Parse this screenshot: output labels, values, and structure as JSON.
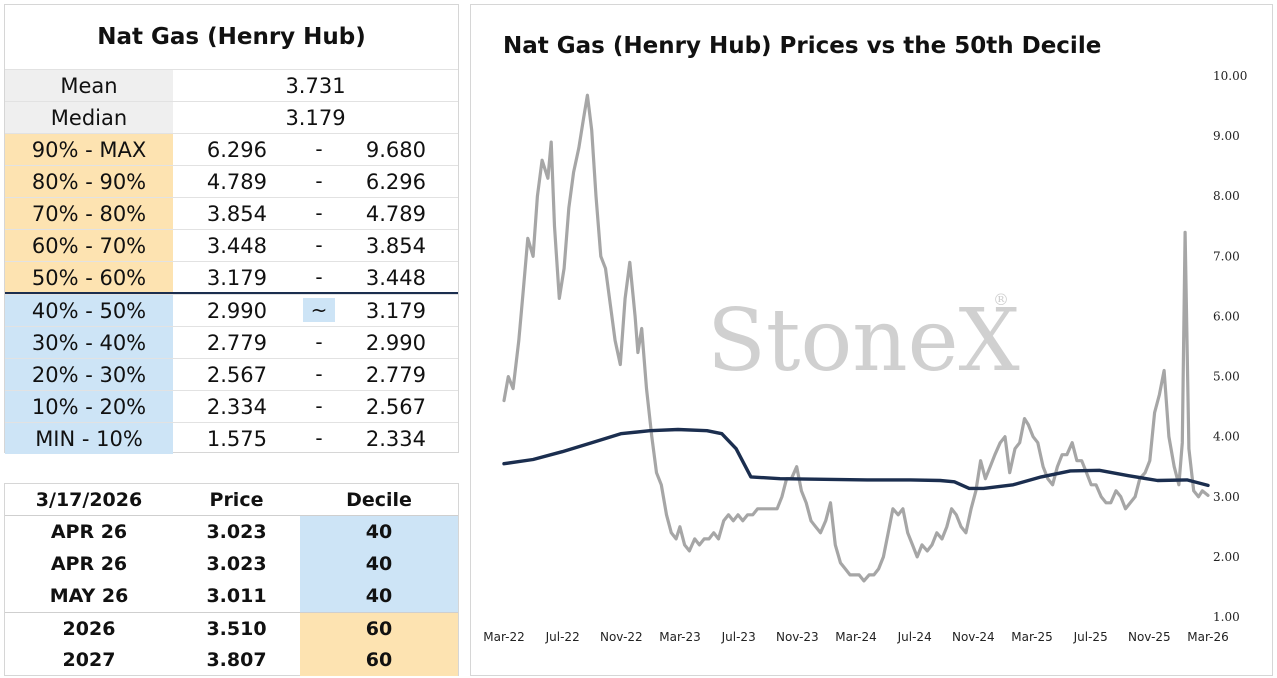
{
  "decile_table": {
    "title": "Nat Gas (Henry Hub)",
    "mean_label": "Mean",
    "mean_value": "3.731",
    "median_label": "Median",
    "median_value": "3.179",
    "rows": [
      {
        "label": "90% - MAX",
        "low": "6.296",
        "sep": "-",
        "high": "9.680"
      },
      {
        "label": "80% - 90%",
        "low": "4.789",
        "sep": "-",
        "high": "6.296"
      },
      {
        "label": "70% - 80%",
        "low": "3.854",
        "sep": "-",
        "high": "4.789"
      },
      {
        "label": "60% - 70%",
        "low": "3.448",
        "sep": "-",
        "high": "3.854"
      },
      {
        "label": "50% - 60%",
        "low": "3.179",
        "sep": "-",
        "high": "3.448"
      },
      {
        "label": "40% - 50%",
        "low": "2.990",
        "sep": "~",
        "high": "3.179"
      },
      {
        "label": "30% - 40%",
        "low": "2.779",
        "sep": "-",
        "high": "2.990"
      },
      {
        "label": "20% - 30%",
        "low": "2.567",
        "sep": "-",
        "high": "2.779"
      },
      {
        "label": "10% - 20%",
        "low": "2.334",
        "sep": "-",
        "high": "2.567"
      },
      {
        "label": "MIN - 10%",
        "low": "1.575",
        "sep": "-",
        "high": "2.334"
      }
    ]
  },
  "quote_table": {
    "date": "3/17/2026",
    "price_header": "Price",
    "decile_header": "Decile",
    "rows": [
      {
        "contract": "APR 26",
        "price": "3.023",
        "decile": "40"
      },
      {
        "contract": "APR 26",
        "price": "3.023",
        "decile": "40"
      },
      {
        "contract": "MAY 26",
        "price": "3.011",
        "decile": "40"
      },
      {
        "contract": "2026",
        "price": "3.510",
        "decile": "60"
      },
      {
        "contract": "2027",
        "price": "3.807",
        "decile": "60"
      }
    ]
  },
  "watermark": "StoneX",
  "colors": {
    "price_line": "#a6a6a6",
    "decile_line": "#1b2e4f",
    "high_fill": "#fde3b1",
    "low_fill": "#cde4f6"
  },
  "chart_data": {
    "type": "line",
    "title": "Nat Gas (Henry Hub) Prices vs the 50th Decile",
    "xlabel": "",
    "ylabel": "",
    "ylim": [
      1.0,
      10.0
    ],
    "yticks": [
      "1.00",
      "2.00",
      "3.00",
      "4.00",
      "5.00",
      "6.00",
      "7.00",
      "8.00",
      "9.00",
      "10.00"
    ],
    "x_tick_labels": [
      "Mar-22",
      "Jul-22",
      "Nov-22",
      "Mar-23",
      "Jul-23",
      "Nov-23",
      "Mar-24",
      "Jul-24",
      "Nov-24",
      "Mar-25",
      "Jul-25",
      "Nov-25",
      "Mar-26"
    ],
    "grid": false,
    "legend": "none",
    "series": [
      {
        "color": "#a6a6a6",
        "x": [
          "2022-03-01",
          "2022-03-10",
          "2022-03-20",
          "2022-04-01",
          "2022-04-10",
          "2022-04-20",
          "2022-05-01",
          "2022-05-10",
          "2022-05-20",
          "2022-06-01",
          "2022-06-08",
          "2022-06-15",
          "2022-06-25",
          "2022-07-05",
          "2022-07-15",
          "2022-07-25",
          "2022-08-05",
          "2022-08-15",
          "2022-08-23",
          "2022-09-01",
          "2022-09-10",
          "2022-09-20",
          "2022-09-30",
          "2022-10-10",
          "2022-10-20",
          "2022-10-31",
          "2022-11-10",
          "2022-11-20",
          "2022-12-01",
          "2022-12-07",
          "2022-12-15",
          "2022-12-25",
          "2023-01-05",
          "2023-01-15",
          "2023-01-25",
          "2023-02-05",
          "2023-02-15",
          "2023-02-25",
          "2023-03-05",
          "2023-03-15",
          "2023-03-25",
          "2023-04-05",
          "2023-04-15",
          "2023-04-25",
          "2023-05-05",
          "2023-05-15",
          "2023-05-25",
          "2023-06-05",
          "2023-06-15",
          "2023-06-25",
          "2023-07-05",
          "2023-07-15",
          "2023-07-25",
          "2023-08-05",
          "2023-08-15",
          "2023-08-25",
          "2023-09-05",
          "2023-09-15",
          "2023-09-25",
          "2023-10-05",
          "2023-10-15",
          "2023-10-25",
          "2023-11-05",
          "2023-11-15",
          "2023-11-25",
          "2023-12-05",
          "2023-12-15",
          "2023-12-25",
          "2024-01-05",
          "2024-01-15",
          "2024-01-25",
          "2024-02-05",
          "2024-02-15",
          "2024-02-25",
          "2024-03-05",
          "2024-03-15",
          "2024-03-25",
          "2024-04-05",
          "2024-04-15",
          "2024-04-25",
          "2024-05-05",
          "2024-05-15",
          "2024-05-25",
          "2024-06-05",
          "2024-06-15",
          "2024-06-25",
          "2024-07-05",
          "2024-07-15",
          "2024-07-25",
          "2024-08-05",
          "2024-08-15",
          "2024-08-25",
          "2024-09-05",
          "2024-09-15",
          "2024-09-25",
          "2024-10-05",
          "2024-10-15",
          "2024-10-25",
          "2024-11-05",
          "2024-11-15",
          "2024-11-25",
          "2024-12-05",
          "2024-12-15",
          "2024-12-25",
          "2025-01-05",
          "2025-01-15",
          "2025-01-25",
          "2025-02-05",
          "2025-02-15",
          "2025-02-25",
          "2025-03-05",
          "2025-03-15",
          "2025-03-25",
          "2025-04-05",
          "2025-04-15",
          "2025-04-25",
          "2025-05-05",
          "2025-05-15",
          "2025-05-25",
          "2025-06-05",
          "2025-06-15",
          "2025-06-25",
          "2025-07-05",
          "2025-07-15",
          "2025-07-25",
          "2025-08-05",
          "2025-08-15",
          "2025-08-25",
          "2025-09-05",
          "2025-09-15",
          "2025-09-25",
          "2025-10-05",
          "2025-10-15",
          "2025-10-25",
          "2025-11-05",
          "2025-11-15",
          "2025-11-25",
          "2025-12-05",
          "2025-12-15",
          "2025-12-25",
          "2026-01-05",
          "2026-01-15",
          "2026-01-22",
          "2026-01-28",
          "2026-02-05",
          "2026-02-15",
          "2026-02-25",
          "2026-03-05",
          "2026-03-17"
        ],
        "values": [
          4.6,
          5.0,
          4.8,
          5.6,
          6.4,
          7.3,
          7.0,
          8.0,
          8.6,
          8.3,
          8.9,
          7.5,
          6.3,
          6.8,
          7.8,
          8.4,
          8.8,
          9.3,
          9.68,
          9.1,
          8.0,
          7.0,
          6.8,
          6.2,
          5.6,
          5.2,
          6.3,
          6.9,
          6.0,
          5.4,
          5.8,
          4.8,
          4.0,
          3.4,
          3.2,
          2.7,
          2.4,
          2.3,
          2.5,
          2.2,
          2.1,
          2.3,
          2.2,
          2.3,
          2.3,
          2.4,
          2.3,
          2.6,
          2.7,
          2.6,
          2.7,
          2.6,
          2.7,
          2.7,
          2.8,
          2.8,
          2.8,
          2.8,
          2.8,
          3.0,
          3.3,
          3.3,
          3.5,
          3.1,
          2.9,
          2.6,
          2.5,
          2.4,
          2.6,
          2.9,
          2.2,
          1.9,
          1.8,
          1.7,
          1.7,
          1.7,
          1.6,
          1.7,
          1.7,
          1.8,
          2.0,
          2.4,
          2.8,
          2.7,
          2.8,
          2.4,
          2.2,
          2.0,
          2.2,
          2.1,
          2.2,
          2.4,
          2.3,
          2.5,
          2.8,
          2.7,
          2.5,
          2.4,
          2.8,
          3.1,
          3.6,
          3.3,
          3.5,
          3.7,
          3.9,
          4.0,
          3.4,
          3.8,
          3.9,
          4.3,
          4.2,
          4.0,
          3.9,
          3.5,
          3.3,
          3.2,
          3.5,
          3.7,
          3.7,
          3.9,
          3.6,
          3.6,
          3.4,
          3.2,
          3.2,
          3.0,
          2.9,
          2.9,
          3.1,
          3.0,
          2.8,
          2.9,
          3.0,
          3.3,
          3.4,
          3.6,
          4.4,
          4.7,
          5.1,
          4.0,
          3.5,
          3.2,
          3.9,
          7.4,
          3.8,
          3.1,
          3.0,
          3.1,
          3.023
        ]
      },
      {
        "color": "#1b2e4f",
        "x": [
          "2022-03-01",
          "2022-05-01",
          "2022-07-01",
          "2022-09-01",
          "2022-11-01",
          "2023-01-01",
          "2023-03-01",
          "2023-05-01",
          "2023-06-01",
          "2023-07-01",
          "2023-08-01",
          "2023-10-01",
          "2024-01-01",
          "2024-04-01",
          "2024-07-01",
          "2024-09-01",
          "2024-10-01",
          "2024-11-01",
          "2024-12-01",
          "2025-02-01",
          "2025-04-01",
          "2025-06-01",
          "2025-08-01",
          "2025-10-01",
          "2025-12-01",
          "2026-02-01",
          "2026-03-17"
        ],
        "values": [
          3.55,
          3.62,
          3.75,
          3.9,
          4.05,
          4.1,
          4.12,
          4.1,
          4.05,
          3.8,
          3.33,
          3.3,
          3.29,
          3.28,
          3.28,
          3.27,
          3.25,
          3.14,
          3.14,
          3.2,
          3.33,
          3.43,
          3.44,
          3.35,
          3.27,
          3.28,
          3.19
        ]
      }
    ]
  }
}
